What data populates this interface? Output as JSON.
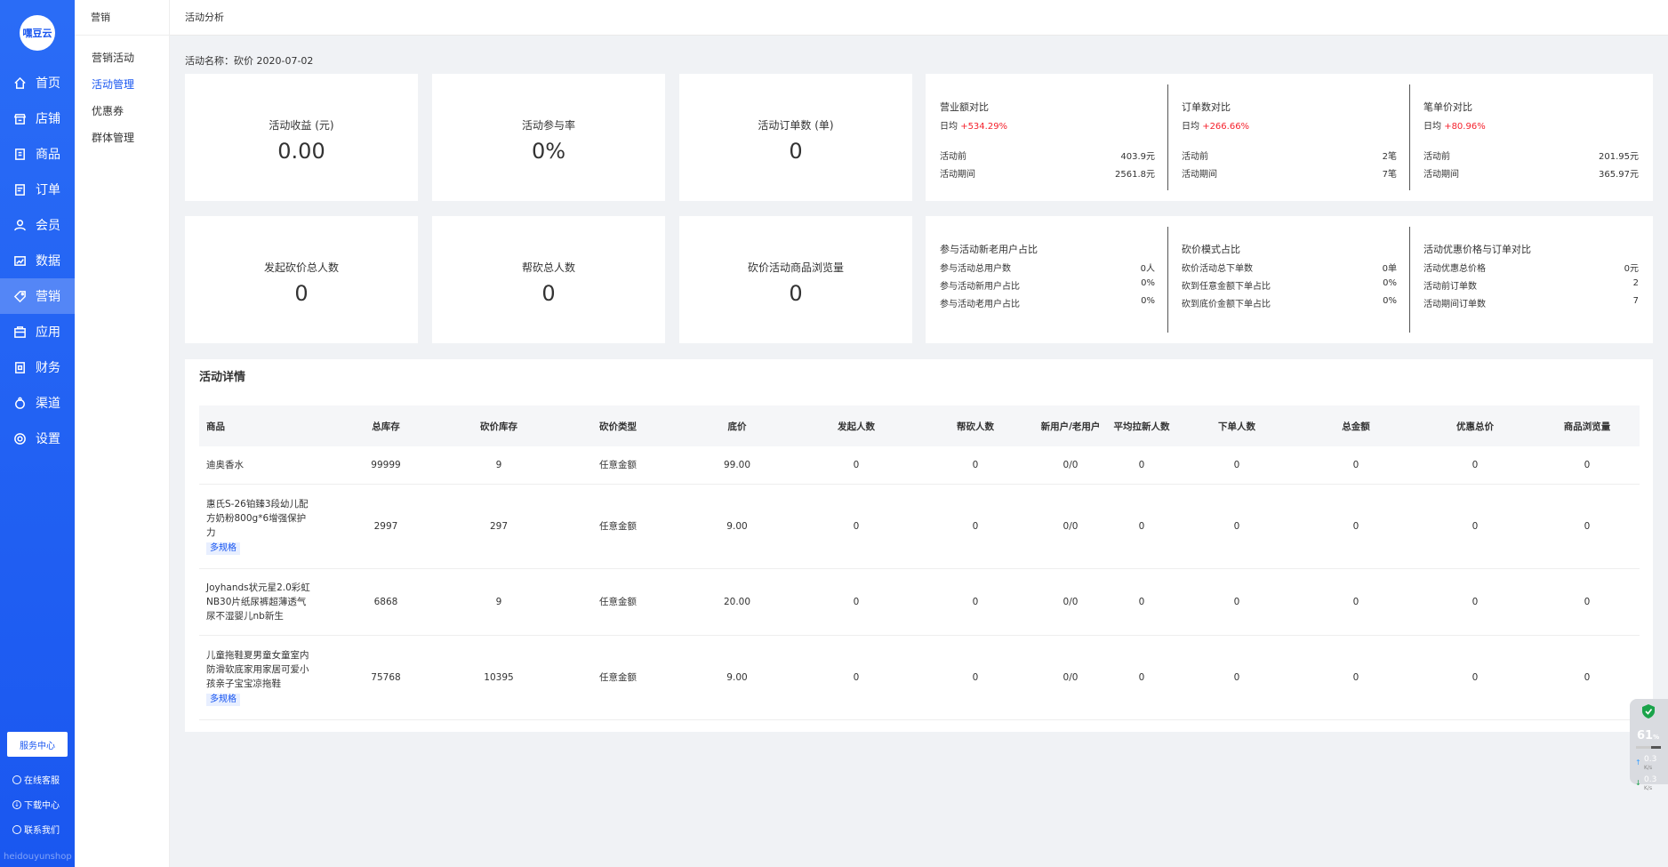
{
  "sidebar": {
    "logo_text": "嘿豆云",
    "items": [
      {
        "label": "首页",
        "icon": "home-icon"
      },
      {
        "label": "店铺",
        "icon": "shop-icon"
      },
      {
        "label": "商品",
        "icon": "goods-icon"
      },
      {
        "label": "订单",
        "icon": "order-icon"
      },
      {
        "label": "会员",
        "icon": "member-icon"
      },
      {
        "label": "数据",
        "icon": "data-icon"
      },
      {
        "label": "营销",
        "icon": "tag-icon"
      },
      {
        "label": "应用",
        "icon": "app-icon"
      },
      {
        "label": "财务",
        "icon": "finance-icon"
      },
      {
        "label": "渠道",
        "icon": "channel-icon"
      },
      {
        "label": "设置",
        "icon": "gear-icon"
      }
    ],
    "active_index": 6,
    "service_btn": "服务中心",
    "footer": [
      "在线客服",
      "下载中心",
      "联系我们"
    ],
    "watermark": "heidouyunshop"
  },
  "subnav": {
    "title": "营销",
    "items": [
      "营销活动",
      "活动管理",
      "优惠券",
      "群体管理"
    ],
    "active_index": 1
  },
  "header": {
    "breadcrumb": "活动分析"
  },
  "activity": {
    "label": "活动名称：砍价 2020-07-02"
  },
  "stats": [
    {
      "label": "活动收益 (元)",
      "value": "0.00"
    },
    {
      "label": "活动参与率",
      "value": "0%"
    },
    {
      "label": "活动订单数 (单)",
      "value": "0"
    },
    {
      "label": "发起砍价总人数",
      "value": "0"
    },
    {
      "label": "帮砍总人数",
      "value": "0"
    },
    {
      "label": "砍价活动商品浏览量",
      "value": "0"
    }
  ],
  "compare_top": [
    {
      "title": "营业额对比",
      "avg_label": "日均",
      "avg_value": "+534.29%",
      "rows": [
        {
          "k": "活动前",
          "v": "403.9元"
        },
        {
          "k": "活动期间",
          "v": "2561.8元"
        }
      ]
    },
    {
      "title": "订单数对比",
      "avg_label": "日均",
      "avg_value": "+266.66%",
      "rows": [
        {
          "k": "活动前",
          "v": "2笔"
        },
        {
          "k": "活动期间",
          "v": "7笔"
        }
      ]
    },
    {
      "title": "笔单价对比",
      "avg_label": "日均",
      "avg_value": "+80.96%",
      "rows": [
        {
          "k": "活动前",
          "v": "201.95元"
        },
        {
          "k": "活动期间",
          "v": "365.97元"
        }
      ]
    }
  ],
  "compare_bottom": [
    {
      "title": "参与活动新老用户占比",
      "rows": [
        {
          "k": "参与活动总用户数",
          "v": "0人"
        },
        {
          "k": "参与活动新用户占比",
          "v": "0%"
        },
        {
          "k": "参与活动老用户占比",
          "v": "0%"
        }
      ]
    },
    {
      "title": "砍价模式占比",
      "rows": [
        {
          "k": "砍价活动总下单数",
          "v": "0单"
        },
        {
          "k": "砍到任意金额下单占比",
          "v": "0%"
        },
        {
          "k": "砍到底价金额下单占比",
          "v": "0%"
        }
      ]
    },
    {
      "title": "活动优惠价格与订单对比",
      "rows": [
        {
          "k": "活动优惠总价格",
          "v": "0元"
        },
        {
          "k": "活动前订单数",
          "v": "2"
        },
        {
          "k": "活动期间订单数",
          "v": "7"
        }
      ]
    }
  ],
  "table": {
    "title": "活动详情",
    "headers": [
      "商品",
      "总库存",
      "砍价库存",
      "砍价类型",
      "底价",
      "发起人数",
      "帮砍人数",
      "新用户/老用户",
      "平均拉新人数",
      "下单人数",
      "总金额",
      "优惠总价",
      "商品浏览量"
    ],
    "rows": [
      {
        "name": "迪奥香水",
        "tag": "",
        "cells": [
          "99999",
          "9",
          "任意金额",
          "99.00",
          "0",
          "0",
          "0/0",
          "0",
          "0",
          "0",
          "0",
          "0"
        ]
      },
      {
        "name": "惠氏S-26铂臻3段幼儿配方奶粉800g*6增强保护力",
        "tag": "多规格",
        "cells": [
          "2997",
          "297",
          "任意金额",
          "9.00",
          "0",
          "0",
          "0/0",
          "0",
          "0",
          "0",
          "0",
          "0"
        ]
      },
      {
        "name": "Joyhands状元星2.0彩虹NB30片纸尿裤超薄透气尿不湿婴儿nb新生",
        "tag": "",
        "cells": [
          "6868",
          "9",
          "任意金额",
          "20.00",
          "0",
          "0",
          "0/0",
          "0",
          "0",
          "0",
          "0",
          "0"
        ]
      },
      {
        "name": "儿童拖鞋夏男童女童室内防滑软底家用家居可爱小孩亲子宝宝凉拖鞋",
        "tag": "多规格",
        "cells": [
          "75768",
          "10395",
          "任意金额",
          "9.00",
          "0",
          "0",
          "0/0",
          "0",
          "0",
          "0",
          "0",
          "0"
        ]
      }
    ]
  },
  "widget": {
    "percent": "61",
    "percent_unit": "%",
    "percent_fill": 0.61,
    "up": "0.3",
    "down": "0.3",
    "unit": "K/s"
  }
}
